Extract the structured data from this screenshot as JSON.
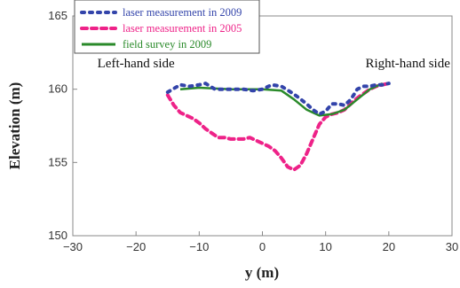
{
  "chart_data": {
    "type": "line",
    "xlabel": "y (m)",
    "ylabel": "Elevation (m)",
    "xlim": [
      -30,
      30
    ],
    "ylim": [
      150,
      165
    ],
    "xticks": [
      "−30",
      "−20",
      "−10",
      "0",
      "10",
      "20",
      "30"
    ],
    "yticks": [
      "150",
      "155",
      "160",
      "165"
    ],
    "xtick_values": [
      -30,
      -20,
      -10,
      0,
      10,
      20,
      30
    ],
    "ytick_values": [
      150,
      155,
      160,
      165
    ],
    "grid": false,
    "legend_position": "top-left",
    "annotations": [
      {
        "text": "Left-hand side",
        "position": "left",
        "x": -20,
        "y": 161.5
      },
      {
        "text": "Right-hand side",
        "position": "right",
        "x": 23,
        "y": 161.5
      }
    ],
    "series": [
      {
        "name": "laser measurement in 2009",
        "color": "#3344aa",
        "style": "dotted",
        "x": [
          -15,
          -13,
          -11.5,
          -10,
          -9,
          -7.5,
          -6,
          -4.5,
          -3,
          -1.5,
          0,
          1.5,
          3,
          4.5,
          5.5,
          7,
          8,
          9,
          10,
          11,
          12,
          13,
          14,
          15,
          16,
          17,
          18,
          19,
          20
        ],
        "y": [
          159.8,
          160.3,
          160.2,
          160.3,
          160.4,
          160.0,
          160.0,
          160.0,
          160.0,
          159.9,
          160.0,
          160.3,
          160.2,
          159.8,
          159.5,
          159.0,
          158.6,
          158.3,
          158.5,
          159.0,
          159.0,
          158.9,
          159.3,
          160.0,
          160.2,
          160.2,
          160.3,
          160.3,
          160.4
        ]
      },
      {
        "name": "laser measurement in 2005",
        "color": "#ee2288",
        "style": "dashed",
        "x": [
          -15,
          -14,
          -13,
          -12,
          -11,
          -10,
          -9,
          -8,
          -7,
          -6,
          -5,
          -4,
          -3,
          -2,
          -1,
          0,
          1,
          2,
          3,
          4,
          5,
          6,
          7,
          8,
          9,
          10,
          11,
          12,
          13,
          14,
          15,
          16,
          17,
          18,
          19,
          20
        ],
        "y": [
          159.6,
          158.9,
          158.4,
          158.2,
          158.0,
          157.7,
          157.3,
          157.0,
          156.7,
          156.7,
          156.6,
          156.6,
          156.6,
          156.7,
          156.5,
          156.3,
          156.1,
          155.8,
          155.3,
          154.7,
          154.5,
          154.8,
          155.6,
          156.6,
          157.6,
          158.1,
          158.3,
          158.4,
          158.6,
          159.0,
          159.4,
          159.7,
          160.0,
          160.2,
          160.3,
          160.4
        ]
      },
      {
        "name": "field survey in 2009",
        "color": "#2a8a2a",
        "style": "solid",
        "x": [
          -13,
          -10,
          -5,
          0,
          3,
          5,
          7,
          9,
          11,
          13,
          15,
          17,
          19
        ],
        "y": [
          160.0,
          160.1,
          160.0,
          160.0,
          159.9,
          159.3,
          158.6,
          158.2,
          158.3,
          158.6,
          159.3,
          160.0,
          160.4
        ]
      }
    ]
  }
}
